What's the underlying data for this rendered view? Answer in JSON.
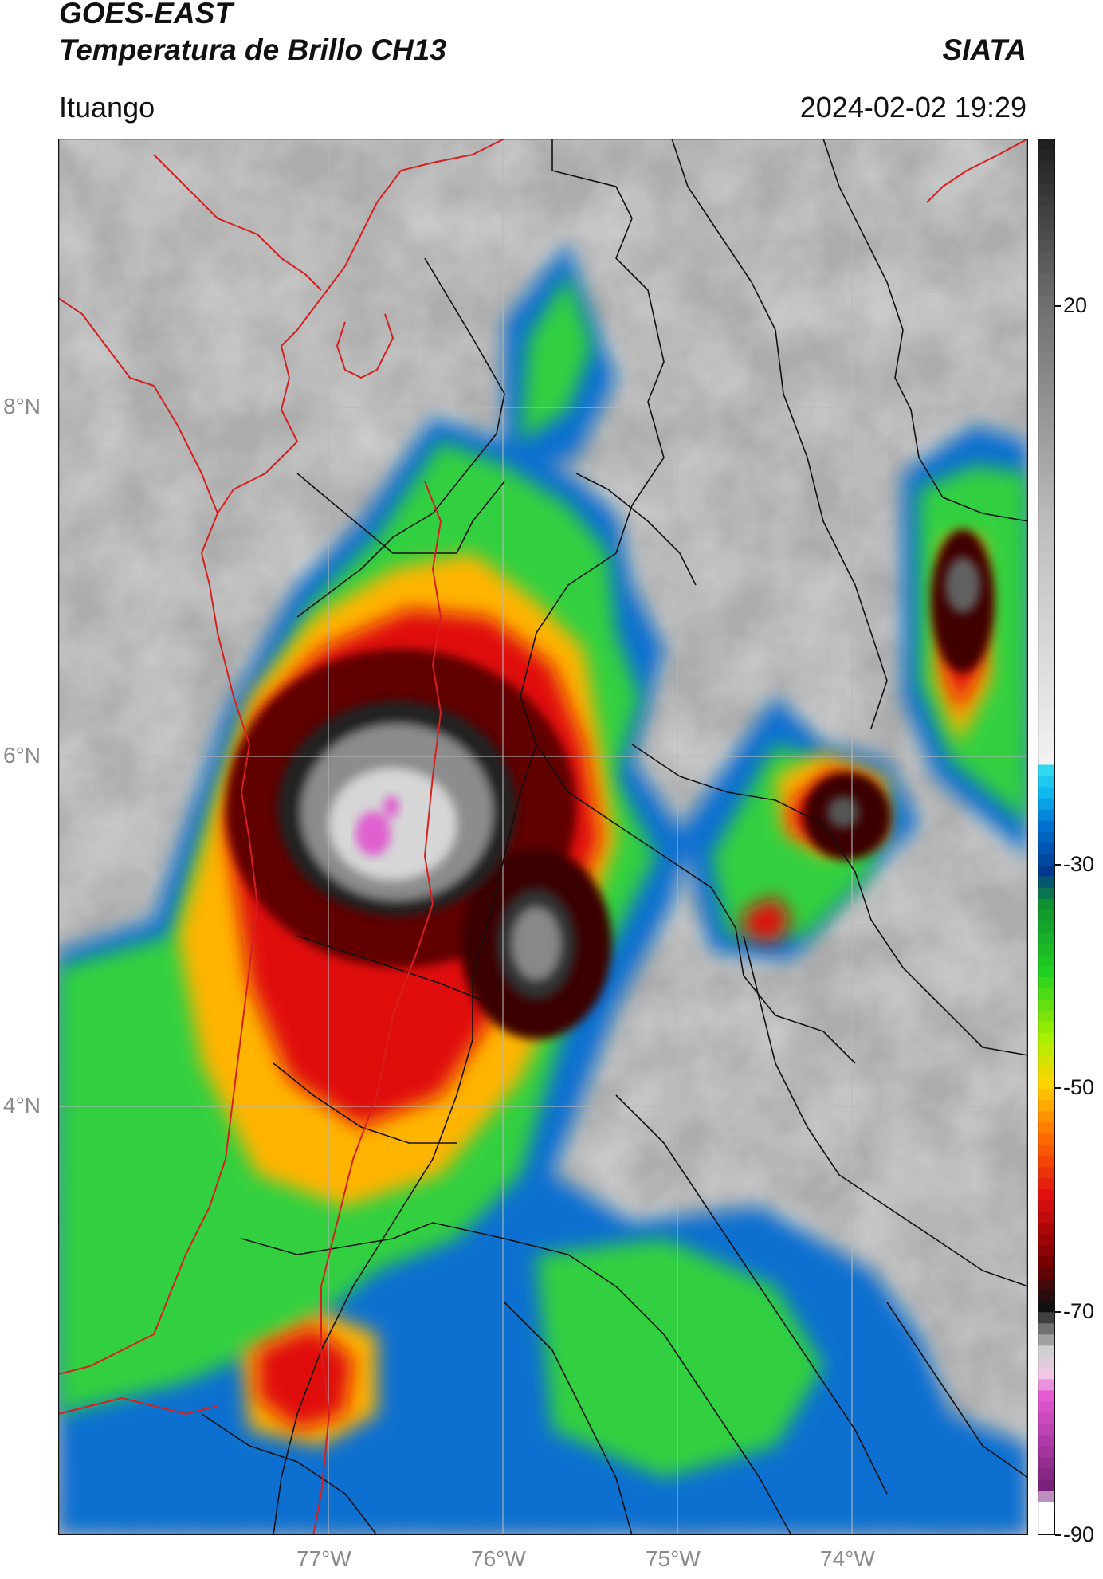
{
  "header": {
    "satellite": "GOES-EAST",
    "product": "Temperatura de Brillo CH13",
    "agency": "SIATA",
    "location": "Ituango",
    "datetime": "2024-02-02 19:29"
  },
  "map": {
    "lat_labels": [
      "8°N",
      "6°N",
      "4°N"
    ],
    "lon_labels": [
      "77°W",
      "76°W",
      "75°W",
      "74°W"
    ],
    "colors": {
      "country_border": "#d42020",
      "admin_border": "#111111",
      "gridline": "#b8b8b8"
    }
  },
  "colorbar": {
    "tick_labels": [
      "20",
      "-30",
      "-50",
      "-70",
      "-90"
    ],
    "stops": [
      {
        "t": -90,
        "color": "#ffffff"
      },
      {
        "t": -88,
        "color": "#ffffff"
      },
      {
        "t": -86,
        "color": "#7a1f7a"
      },
      {
        "t": -82,
        "color": "#b03aa8"
      },
      {
        "t": -78,
        "color": "#e45ad0"
      },
      {
        "t": -76,
        "color": "#f0c8e6"
      },
      {
        "t": -74,
        "color": "#cfcfcf"
      },
      {
        "t": -72,
        "color": "#707070"
      },
      {
        "t": -70,
        "color": "#101010"
      },
      {
        "t": -66,
        "color": "#7a0000"
      },
      {
        "t": -60,
        "color": "#e01010"
      },
      {
        "t": -55,
        "color": "#ff6a00"
      },
      {
        "t": -50,
        "color": "#ffd400"
      },
      {
        "t": -46,
        "color": "#a8f000"
      },
      {
        "t": -40,
        "color": "#20d020"
      },
      {
        "t": -34,
        "color": "#109030"
      },
      {
        "t": -31,
        "color": "#003a90"
      },
      {
        "t": -27,
        "color": "#0070d0"
      },
      {
        "t": -24,
        "color": "#10b8f0"
      },
      {
        "t": -22,
        "color": "#30d8f0"
      },
      {
        "t": -21,
        "color": "#f2f2f2"
      },
      {
        "t": 0,
        "color": "#bdbdbd"
      },
      {
        "t": 20,
        "color": "#6e6e6e"
      },
      {
        "t": 35,
        "color": "#1a1a1a"
      }
    ]
  }
}
